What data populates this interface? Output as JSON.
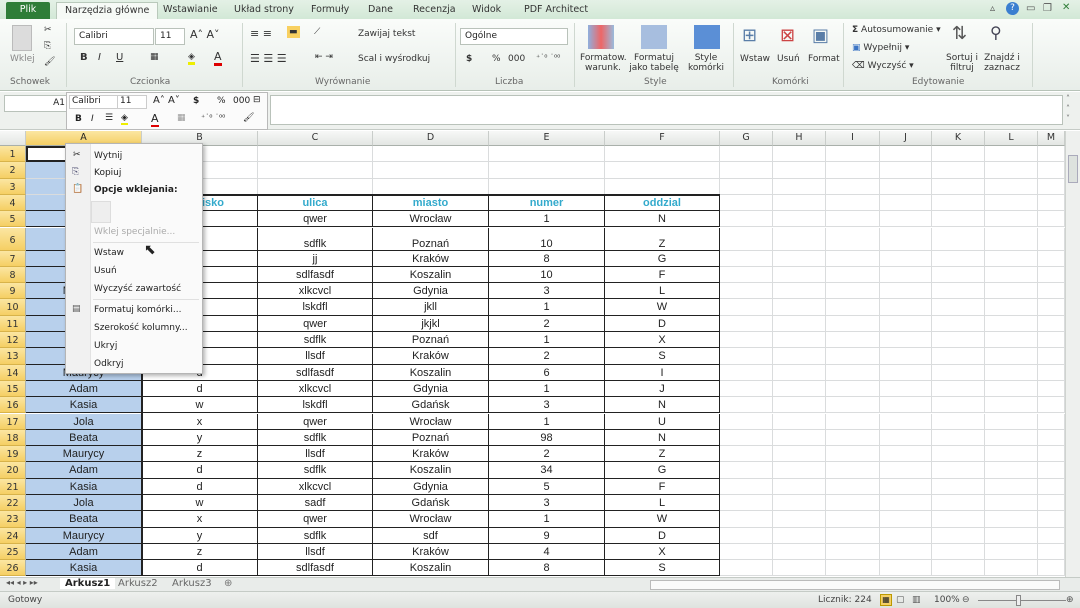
{
  "ribbon_tabs": [
    "Plik",
    "Narzędzia główne",
    "Wstawianie",
    "Układ strony",
    "Formuły",
    "Dane",
    "Recenzja",
    "Widok",
    "PDF Architect"
  ],
  "ribbon": {
    "clipboard": {
      "paste": "Wklej",
      "label": "Schowek"
    },
    "font": {
      "name": "Calibri",
      "size": "11",
      "label": "Czcionka"
    },
    "alignment": {
      "wrap": "Zawijaj tekst",
      "merge": "Scal i wyśrodkuj",
      "label": "Wyrównanie"
    },
    "number": {
      "format": "Ogólne",
      "currency": "$",
      "percent": "%",
      "thousands": "000",
      "label": "Liczba"
    },
    "styles": {
      "conditional": "Formatow. warunk.",
      "as_table": "Formatuj jako tabelę",
      "cell_styles": "Style komórki",
      "label": "Style"
    },
    "cells": {
      "insert": "Wstaw",
      "delete": "Usuń",
      "format": "Format",
      "label": "Komórki"
    },
    "editing": {
      "autosum": "Autosumowanie",
      "fill": "Wypełnij",
      "clear": "Wyczyść",
      "sort": "Sortuj i filtruj",
      "find": "Znajdź i zaznacz",
      "label": "Edytowanie"
    }
  },
  "name_box": "A1",
  "mini_toolbar": {
    "font": "Calibri",
    "size": "11",
    "currency": "$",
    "percent": "%",
    "thousands": "000"
  },
  "columns": [
    "A",
    "B",
    "C",
    "D",
    "E",
    "F",
    "G",
    "H",
    "I",
    "J",
    "K",
    "L",
    "M"
  ],
  "selected_column": "A",
  "rows": [
    [
      "",
      "",
      " ",
      " ",
      " ",
      " "
    ],
    [
      "",
      "",
      "",
      "",
      "",
      ""
    ],
    [
      "",
      "",
      "",
      "",
      "",
      ""
    ],
    [
      "",
      "nazwisko",
      "ulica",
      "miasto",
      "numer",
      "oddzial"
    ],
    [
      "",
      "",
      "qwer",
      "Wrocław",
      "1",
      "N"
    ],
    [
      "",
      "",
      "sdflk",
      "Poznań",
      "10",
      "Z"
    ],
    [
      "",
      "",
      "jj",
      "Kraków",
      "8",
      "G"
    ],
    [
      "",
      "",
      "sdlfasdf",
      "Koszalin",
      "10",
      "F"
    ],
    [
      "Maurycy",
      "",
      "xlkcvcl",
      "Gdynia",
      "3",
      "L"
    ],
    [
      "",
      "",
      "lskdfl",
      "jkll",
      "1",
      "W"
    ],
    [
      "",
      "",
      "qwer",
      "jkjkl",
      "2",
      "D"
    ],
    [
      "",
      "",
      "sdflk",
      "Poznań",
      "1",
      "X"
    ],
    [
      "",
      "",
      "llsdf",
      "Kraków",
      "2",
      "S"
    ],
    [
      "Maurycy",
      "d",
      "sdlfasdf",
      "Koszalin",
      "6",
      "I"
    ],
    [
      "Adam",
      "d",
      "xlkcvcl",
      "Gdynia",
      "1",
      "J"
    ],
    [
      "Kasia",
      "w",
      "lskdfl",
      "Gdańsk",
      "3",
      "N"
    ],
    [
      "Jola",
      "x",
      "qwer",
      "Wrocław",
      "1",
      "U"
    ],
    [
      "Beata",
      "y",
      "sdflk",
      "Poznań",
      "98",
      "N"
    ],
    [
      "Maurycy",
      "z",
      "llsdf",
      "Kraków",
      "2",
      "Z"
    ],
    [
      "Adam",
      "d",
      "sdflk",
      "Koszalin",
      "34",
      "G"
    ],
    [
      "Kasia",
      "d",
      "xlkcvcl",
      "Gdynia",
      "5",
      "F"
    ],
    [
      "Jola",
      "w",
      "sadf",
      "Gdańsk",
      "3",
      "L"
    ],
    [
      "Beata",
      "x",
      "qwer",
      "Wrocław",
      "1",
      "W"
    ],
    [
      "Maurycy",
      "y",
      "sdflk",
      "sdf",
      "9",
      "D"
    ],
    [
      "Adam",
      "z",
      "llsdf",
      "Kraków",
      "4",
      "X"
    ],
    [
      "Kasia",
      "d",
      "sdlfasdf",
      "Koszalin",
      "8",
      "S"
    ]
  ],
  "context_menu": {
    "cut": "Wytnij",
    "copy": "Kopiuj",
    "paste_options": "Opcje wklejania:",
    "paste_special": "Wklej specjalnie...",
    "insert": "Wstaw",
    "delete": "Usuń",
    "clear": "Wyczyść zawartość",
    "format_cells": "Formatuj komórki...",
    "column_width": "Szerokość kolumny...",
    "hide": "Ukryj",
    "unhide": "Odkryj"
  },
  "sheets": [
    "Arkusz1",
    "Arkusz2",
    "Arkusz3"
  ],
  "active_sheet": "Arkusz1",
  "status": {
    "ready": "Gotowy",
    "count": "Licznik: 224",
    "zoom": "100%"
  },
  "colors": {
    "accent": "#2f7d38",
    "header_text": "#33aacc",
    "selection": "#b8d0ec",
    "row_header": "#f5cf64"
  }
}
